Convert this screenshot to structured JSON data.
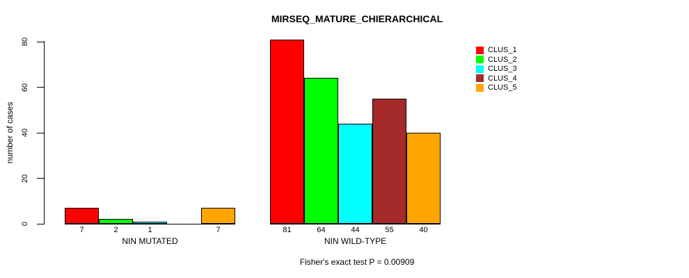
{
  "chart_data": {
    "type": "bar",
    "title": "MIRSEQ_MATURE_CHIERARCHICAL",
    "ylabel": "number of cases",
    "footer": "Fisher's exact test P = 0.00909",
    "ylim": [
      0,
      80
    ],
    "yticks": [
      0,
      20,
      40,
      60,
      80
    ],
    "grid": false,
    "legend_position": "top-right",
    "series": [
      {
        "name": "CLUS_1",
        "color": "#FF0000"
      },
      {
        "name": "CLUS_2",
        "color": "#00FF00"
      },
      {
        "name": "CLUS_3",
        "color": "#00FFFF"
      },
      {
        "name": "CLUS_4",
        "color": "#A52A2A"
      },
      {
        "name": "CLUS_5",
        "color": "#FFA500"
      }
    ],
    "groups": [
      {
        "label": "NIN MUTATED",
        "values": [
          7,
          2,
          1,
          0,
          7
        ],
        "value_labels": [
          "7",
          "2",
          "1",
          "",
          "7"
        ]
      },
      {
        "label": "NIN WILD-TYPE",
        "values": [
          81,
          64,
          44,
          55,
          40
        ],
        "value_labels": [
          "81",
          "64",
          "44",
          "55",
          "40"
        ]
      }
    ]
  }
}
